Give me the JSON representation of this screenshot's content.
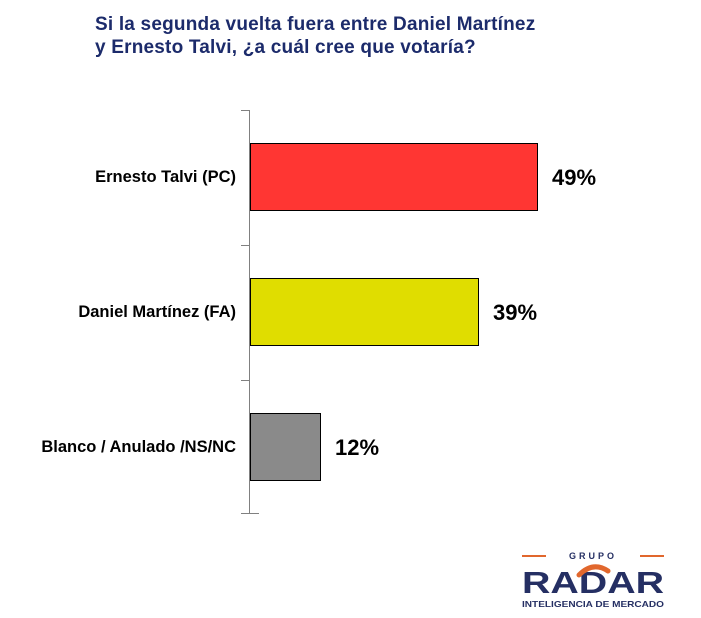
{
  "title": {
    "line1": "Si la segunda vuelta fuera entre Daniel Martínez",
    "line2": "y Ernesto Talvi, ¿a cuál cree que votaría?",
    "color": "#1C2B6B"
  },
  "chart_data": {
    "type": "bar",
    "orientation": "horizontal",
    "title": "Si la segunda vuelta fuera entre Daniel Martínez y Ernesto Talvi, ¿a cuál cree que votaría?",
    "categories": [
      "Ernesto Talvi (PC)",
      "Daniel Martínez (FA)",
      "Blanco / Anulado /NS/NC"
    ],
    "values": [
      49,
      39,
      12
    ],
    "value_labels": [
      "49%",
      "39%",
      "12%"
    ],
    "unit": "%",
    "xlim": [
      0,
      100
    ],
    "bar_colors": [
      "#FF3633",
      "#E0DD00",
      "#8A8A8A"
    ],
    "bar_border_color": "#000000",
    "axis_color": "#808080",
    "grid": false,
    "legend": false,
    "value_axis_labels_shown": false
  },
  "logo": {
    "grupo": "GRUPO",
    "name": "RADAR",
    "tagline": "INTELIGENCIA DE MERCADO",
    "navy": "#252F63",
    "orange": "#E1672D"
  }
}
